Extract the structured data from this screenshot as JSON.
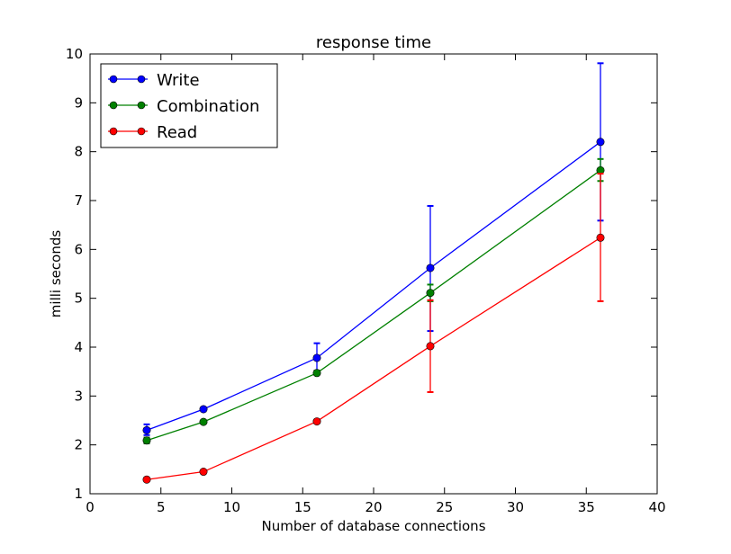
{
  "chart_data": {
    "type": "line",
    "title": "response time",
    "xlabel": "Number of database connections",
    "ylabel": "milli seconds",
    "xlim": [
      0,
      40
    ],
    "ylim": [
      1,
      10
    ],
    "xticks": [
      0,
      5,
      10,
      15,
      20,
      25,
      30,
      35,
      40
    ],
    "yticks": [
      1,
      2,
      3,
      4,
      5,
      6,
      7,
      8,
      9,
      10
    ],
    "grid": false,
    "legend_position": "top-left",
    "x": [
      4,
      8,
      16,
      24,
      36
    ],
    "series": [
      {
        "name": "Write",
        "color": "#0000ff",
        "values": [
          2.3,
          2.73,
          3.78,
          5.62,
          8.2
        ],
        "error_low": [
          2.2,
          2.69,
          3.5,
          4.33,
          6.59
        ],
        "error_high": [
          2.42,
          2.77,
          4.08,
          6.89,
          9.81
        ]
      },
      {
        "name": "Combination",
        "color": "#008000",
        "values": [
          2.09,
          2.47,
          3.47,
          5.11,
          7.62
        ],
        "error_low": [
          2.03,
          2.44,
          3.44,
          4.94,
          7.4
        ],
        "error_high": [
          2.15,
          2.5,
          3.52,
          5.28,
          7.85
        ]
      },
      {
        "name": "Read",
        "color": "#ff0000",
        "values": [
          1.29,
          1.45,
          2.48,
          4.02,
          6.24
        ],
        "error_low": [
          1.27,
          1.43,
          2.45,
          3.08,
          4.94
        ],
        "error_high": [
          1.31,
          1.47,
          2.51,
          4.96,
          7.55
        ]
      }
    ]
  }
}
